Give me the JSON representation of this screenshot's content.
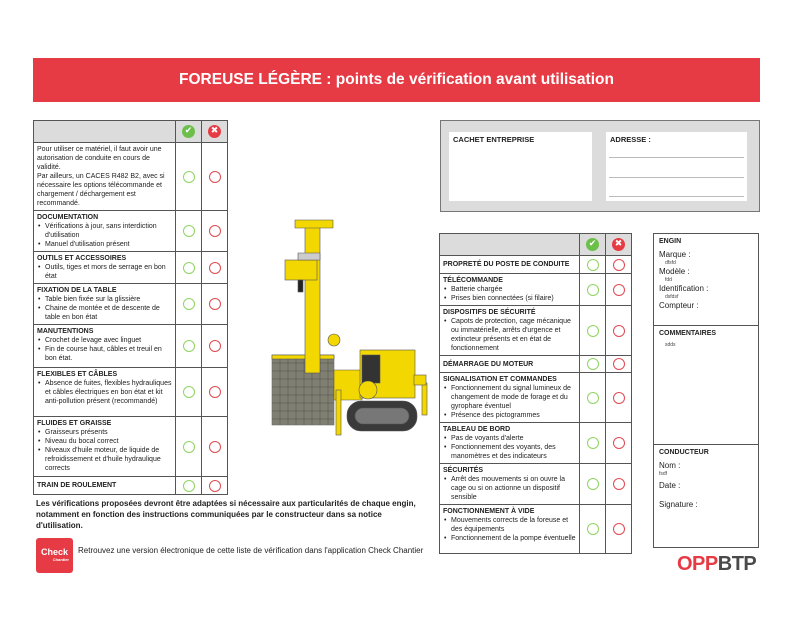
{
  "header": {
    "title": "FOREUSE LÉGÈRE : points de vérification avant utilisation"
  },
  "colors": {
    "accent": "#e63b45",
    "ok": "#6cc04a",
    "ko": "#e63b45"
  },
  "icons": {
    "ok": "check-circle-icon",
    "ko": "x-circle-icon"
  },
  "icon_glyphs": {
    "ok": "✔",
    "ko": "✖"
  },
  "left_table": {
    "intro": "Pour utiliser ce matériel, il faut avoir une autorisation de conduite en cours de validité.\nPar ailleurs, un CACES R482 B2, avec si nécessaire les options télécommande et chargement / déchargement est recommandé.",
    "rows": [
      {
        "title": "DOCUMENTATION",
        "items": [
          "Vérifications à jour, sans interdiction d'utilisation",
          "Manuel d'utilisation présent"
        ]
      },
      {
        "title": "OUTILS ET ACCESSOIRES",
        "items": [
          "Outils, tiges et mors de serrage en bon état"
        ]
      },
      {
        "title": "FIXATION DE LA TABLE",
        "items": [
          "Table bien fixée sur la glissière",
          "Chaine de montée et de descente de table en bon état"
        ]
      },
      {
        "title": "MANUTENTIONS",
        "items": [
          "Crochet de levage avec linguet",
          "Fin de course haut, câbles et treuil en bon état."
        ]
      },
      {
        "title": "FLEXIBLES ET CÂBLES",
        "items": [
          "Absence de fuites, flexibles hydrauliques et câbles électriques en bon état et kit anti-pollution présent (recommandé)"
        ]
      },
      {
        "title": "FLUIDES ET GRAISSE",
        "items": [
          "Graisseurs présents",
          "Niveau du bocal correct",
          "Niveaux d'huile moteur, de liquide de refroidissement et d'huile hydraulique corrects"
        ]
      },
      {
        "title": "TRAIN DE ROULEMENT",
        "items": []
      }
    ]
  },
  "right_table": {
    "rows": [
      {
        "title": "PROPRETÉ DU POSTE DE CONDUITE",
        "items": []
      },
      {
        "title": "TÉLÉCOMMANDE",
        "items": [
          "Batterie chargée",
          "Prises bien connectées (si filaire)"
        ]
      },
      {
        "title": "DISPOSITIFS DE SÉCURITÉ",
        "items": [
          "Capots de protection, cage mécanique ou immatérielle, arrêts d'urgence et extincteur présents et en état de fonctionnement"
        ]
      },
      {
        "title": "DÉMARRAGE DU MOTEUR",
        "items": []
      },
      {
        "title": "SIGNALISATION ET COMMANDES",
        "items": [
          "Fonctionnement du signal lumineux de changement de mode de forage et du gyrophare éventuel",
          "Présence des pictogrammes"
        ]
      },
      {
        "title": "TABLEAU DE BORD",
        "items": [
          "Pas de voyants d'alerte",
          "Fonctionnement des voyants, des manomètres et des indicateurs"
        ]
      },
      {
        "title": "SÉCURITÉS",
        "items": [
          "Arrêt des mouvements si on ouvre la cage ou si on actionne un dispositif sensible"
        ]
      },
      {
        "title": "FONCTIONNEMENT À VIDE",
        "items": [
          "Mouvements corrects de la foreuse et des équipements",
          "Fonctionnement de la pompe éventuelle"
        ]
      }
    ]
  },
  "cachet": {
    "label": "CACHET ENTREPRISE",
    "address_label": "ADRESSE :"
  },
  "engin": {
    "title": "ENGIN",
    "marque_label": "Marque :",
    "marque_value": "dfsfd",
    "modele_label": "Modèle :",
    "modele_value": "fdd",
    "identification_label": "Identification :",
    "identification_value": "dsfdsf",
    "compteur_label": "Compteur :",
    "commentaires_title": "COMMENTAIRES",
    "commentaires_value": "sdds",
    "conducteur_title": "CONDUCTEUR",
    "nom_label": "Nom :",
    "nom_value": "fsdf",
    "date_label": "Date :",
    "signature_label": "Signature :"
  },
  "footer": {
    "note": "Les vérifications proposées devront être adaptées si nécessaire aux particularités de chaque engin, notamment en fonction des instructions communiquées par le constructeur dans sa notice d'utilisation.",
    "app_logo_text": "Check",
    "app_logo_sub": "Chantier",
    "app_text": "Retrouvez une version électronique de cette liste de vérification dans l'application Check Chantier",
    "brand_red": "OPP",
    "brand_grey": "BTP"
  }
}
